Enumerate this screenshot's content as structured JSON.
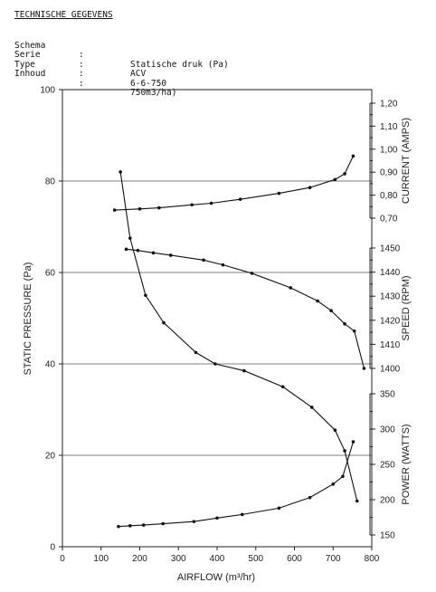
{
  "header": {
    "title": "TECHNISCHE GEGEVENS",
    "specs": [
      {
        "key": "Schema",
        "sep": ":",
        "value": "Statische druk (Pa)"
      },
      {
        "key": "Serie",
        "sep": ":",
        "value": "ACV"
      },
      {
        "key": "Type",
        "sep": ":",
        "value": "6-6-750"
      },
      {
        "key": "Inhoud",
        "sep": ":",
        "value": "750m3/ha)"
      }
    ]
  },
  "chart_data": {
    "type": "line",
    "xlabel": "AIRFLOW (m³/hr)",
    "ylabel": "STATIC PRESSURE (Pa)",
    "xlim": [
      0,
      800
    ],
    "ylim": [
      0,
      100
    ],
    "x_ticks": [
      "0",
      "100",
      "200",
      "300",
      "400",
      "500",
      "600",
      "700",
      "800"
    ],
    "y_ticks": [
      "0",
      "20",
      "40",
      "60",
      "80",
      "100"
    ],
    "grid": "horizontal",
    "right_axes": [
      {
        "label": "CURRENT (AMPS)",
        "range": [
          0.7,
          1.2
        ],
        "ticks": [
          "0,70",
          "0,80",
          "0,90",
          "1,00",
          "1,10",
          "1,20"
        ],
        "minor_step": 0.05
      },
      {
        "label": "SPEED (RPM)",
        "range": [
          1400,
          1450
        ],
        "ticks": [
          "1400",
          "1410",
          "1420",
          "1430",
          "1440",
          "1450"
        ],
        "minor_step": 5
      },
      {
        "label": "POWER (WATTS)",
        "range": [
          150,
          350
        ],
        "ticks": [
          "150",
          "200",
          "250",
          "300",
          "350"
        ],
        "minor_step": 25
      }
    ],
    "series": [
      {
        "axis": "left",
        "points": [
          [
            150,
            82
          ],
          [
            175,
            67.5
          ],
          [
            215,
            55
          ],
          [
            262,
            49
          ],
          [
            345,
            42.5
          ],
          [
            395,
            40
          ],
          [
            470,
            38.5
          ],
          [
            570,
            35
          ],
          [
            645,
            30.5
          ],
          [
            705,
            25.5
          ],
          [
            730,
            21
          ],
          [
            762,
            10
          ]
        ]
      },
      {
        "axis": "CURRENT (AMPS)",
        "points": [
          [
            135,
            0.735
          ],
          [
            200,
            0.74
          ],
          [
            250,
            0.745
          ],
          [
            335,
            0.758
          ],
          [
            385,
            0.765
          ],
          [
            460,
            0.782
          ],
          [
            560,
            0.808
          ],
          [
            640,
            0.833
          ],
          [
            705,
            0.868
          ],
          [
            730,
            0.893
          ],
          [
            752,
            0.97
          ]
        ]
      },
      {
        "axis": "SPEED (RPM)",
        "points": [
          [
            165,
            1449.5
          ],
          [
            195,
            1449
          ],
          [
            235,
            1448
          ],
          [
            280,
            1447
          ],
          [
            365,
            1445
          ],
          [
            415,
            1443
          ],
          [
            490,
            1439.5
          ],
          [
            590,
            1433.5
          ],
          [
            660,
            1428
          ],
          [
            695,
            1424
          ],
          [
            730,
            1418.5
          ],
          [
            755,
            1415.5
          ],
          [
            780,
            1400
          ]
        ]
      },
      {
        "axis": "POWER (WATTS)",
        "points": [
          [
            145,
            162
          ],
          [
            175,
            163
          ],
          [
            210,
            164
          ],
          [
            260,
            166
          ],
          [
            340,
            169
          ],
          [
            400,
            174
          ],
          [
            465,
            179
          ],
          [
            560,
            188
          ],
          [
            640,
            203
          ],
          [
            700,
            222
          ],
          [
            725,
            233
          ],
          [
            752,
            282
          ]
        ]
      }
    ]
  }
}
